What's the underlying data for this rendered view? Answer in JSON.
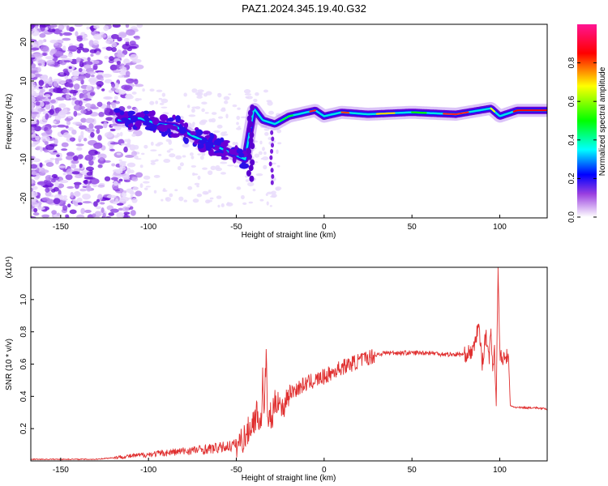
{
  "figure": {
    "title": "PAZ1.2024.345.19.40.G32"
  },
  "chart_data": [
    {
      "type": "heatmap",
      "xlabel": "Height of straight line (km)",
      "ylabel": "Frequency (Hz)",
      "xlim": [
        -167,
        127
      ],
      "ylim": [
        -25,
        24.5
      ],
      "xticks": [
        -150,
        -100,
        -50,
        0,
        50,
        100
      ],
      "yticks": [
        -20,
        -10,
        0,
        10,
        20
      ],
      "colorbar": {
        "label": "Normalized spectral amplitude",
        "range": [
          0,
          1
        ],
        "ticks": [
          "0.0",
          "0.2",
          "0.4",
          "0.6",
          "0.8"
        ],
        "colormap": [
          "#ffffff",
          "#7a00d4",
          "#0000ff",
          "#00ffff",
          "#00ff00",
          "#ffff00",
          "#ff0000",
          "#ff0080"
        ]
      },
      "ridge": [
        {
          "x": -115,
          "f": 0
        },
        {
          "x": -105,
          "f": 0.5
        },
        {
          "x": -95,
          "f": -1
        },
        {
          "x": -85,
          "f": -1.5
        },
        {
          "x": -75,
          "f": -4
        },
        {
          "x": -65,
          "f": -6
        },
        {
          "x": -55,
          "f": -8
        },
        {
          "x": -45,
          "f": -10
        },
        {
          "x": -40,
          "f": 3
        },
        {
          "x": -35,
          "f": 0
        },
        {
          "x": -28,
          "f": -1
        },
        {
          "x": -20,
          "f": 1
        },
        {
          "x": -10,
          "f": 2
        },
        {
          "x": -5,
          "f": 2.5
        },
        {
          "x": 0,
          "f": 1
        },
        {
          "x": 10,
          "f": 2
        },
        {
          "x": 25,
          "f": 1.5
        },
        {
          "x": 50,
          "f": 2
        },
        {
          "x": 75,
          "f": 1.5
        },
        {
          "x": 95,
          "f": 3
        },
        {
          "x": 100,
          "f": 1
        },
        {
          "x": 110,
          "f": 2.5
        },
        {
          "x": 127,
          "f": 2.5
        }
      ]
    },
    {
      "type": "line",
      "xlabel": "Height of straight line (km)",
      "ylabel": "SNR (10 * v/v)",
      "scale_label": "(x10⁴)",
      "xlim": [
        -167,
        127
      ],
      "ylim": [
        0,
        1.2
      ],
      "xticks": [
        -150,
        -100,
        -50,
        0,
        50,
        100
      ],
      "yticks": [
        "0.2",
        "0.4",
        "0.6",
        "0.8",
        "1.0"
      ],
      "line_color": "#e03030",
      "series": [
        {
          "x": [
            -167,
            -150,
            -130,
            -120,
            -110,
            -100,
            -90,
            -80,
            -70,
            -60,
            -55,
            -50,
            -45,
            -40,
            -38,
            -36,
            -35,
            -34,
            -33,
            -32,
            -31,
            -30,
            -28,
            -26,
            -24,
            -22,
            -20,
            -15,
            -10,
            -5,
            0,
            5,
            10,
            15,
            20,
            25,
            30,
            35,
            40,
            50,
            60,
            70,
            80,
            85,
            88,
            90,
            92,
            94,
            95,
            96,
            97,
            98,
            99,
            100,
            102,
            104,
            105,
            106,
            110,
            120,
            127
          ],
          "y": [
            0.01,
            0.01,
            0.01,
            0.02,
            0.03,
            0.04,
            0.05,
            0.06,
            0.07,
            0.08,
            0.09,
            0.1,
            0.15,
            0.25,
            0.3,
            0.22,
            0.5,
            0.28,
            0.7,
            0.2,
            0.3,
            0.25,
            0.35,
            0.4,
            0.3,
            0.38,
            0.42,
            0.45,
            0.48,
            0.5,
            0.52,
            0.55,
            0.58,
            0.6,
            0.62,
            0.64,
            0.66,
            0.67,
            0.67,
            0.67,
            0.67,
            0.66,
            0.66,
            0.68,
            0.85,
            0.6,
            0.78,
            0.65,
            0.8,
            0.58,
            0.7,
            0.35,
            1.2,
            0.66,
            0.62,
            0.65,
            0.64,
            0.34,
            0.33,
            0.33,
            0.32
          ]
        }
      ]
    }
  ]
}
